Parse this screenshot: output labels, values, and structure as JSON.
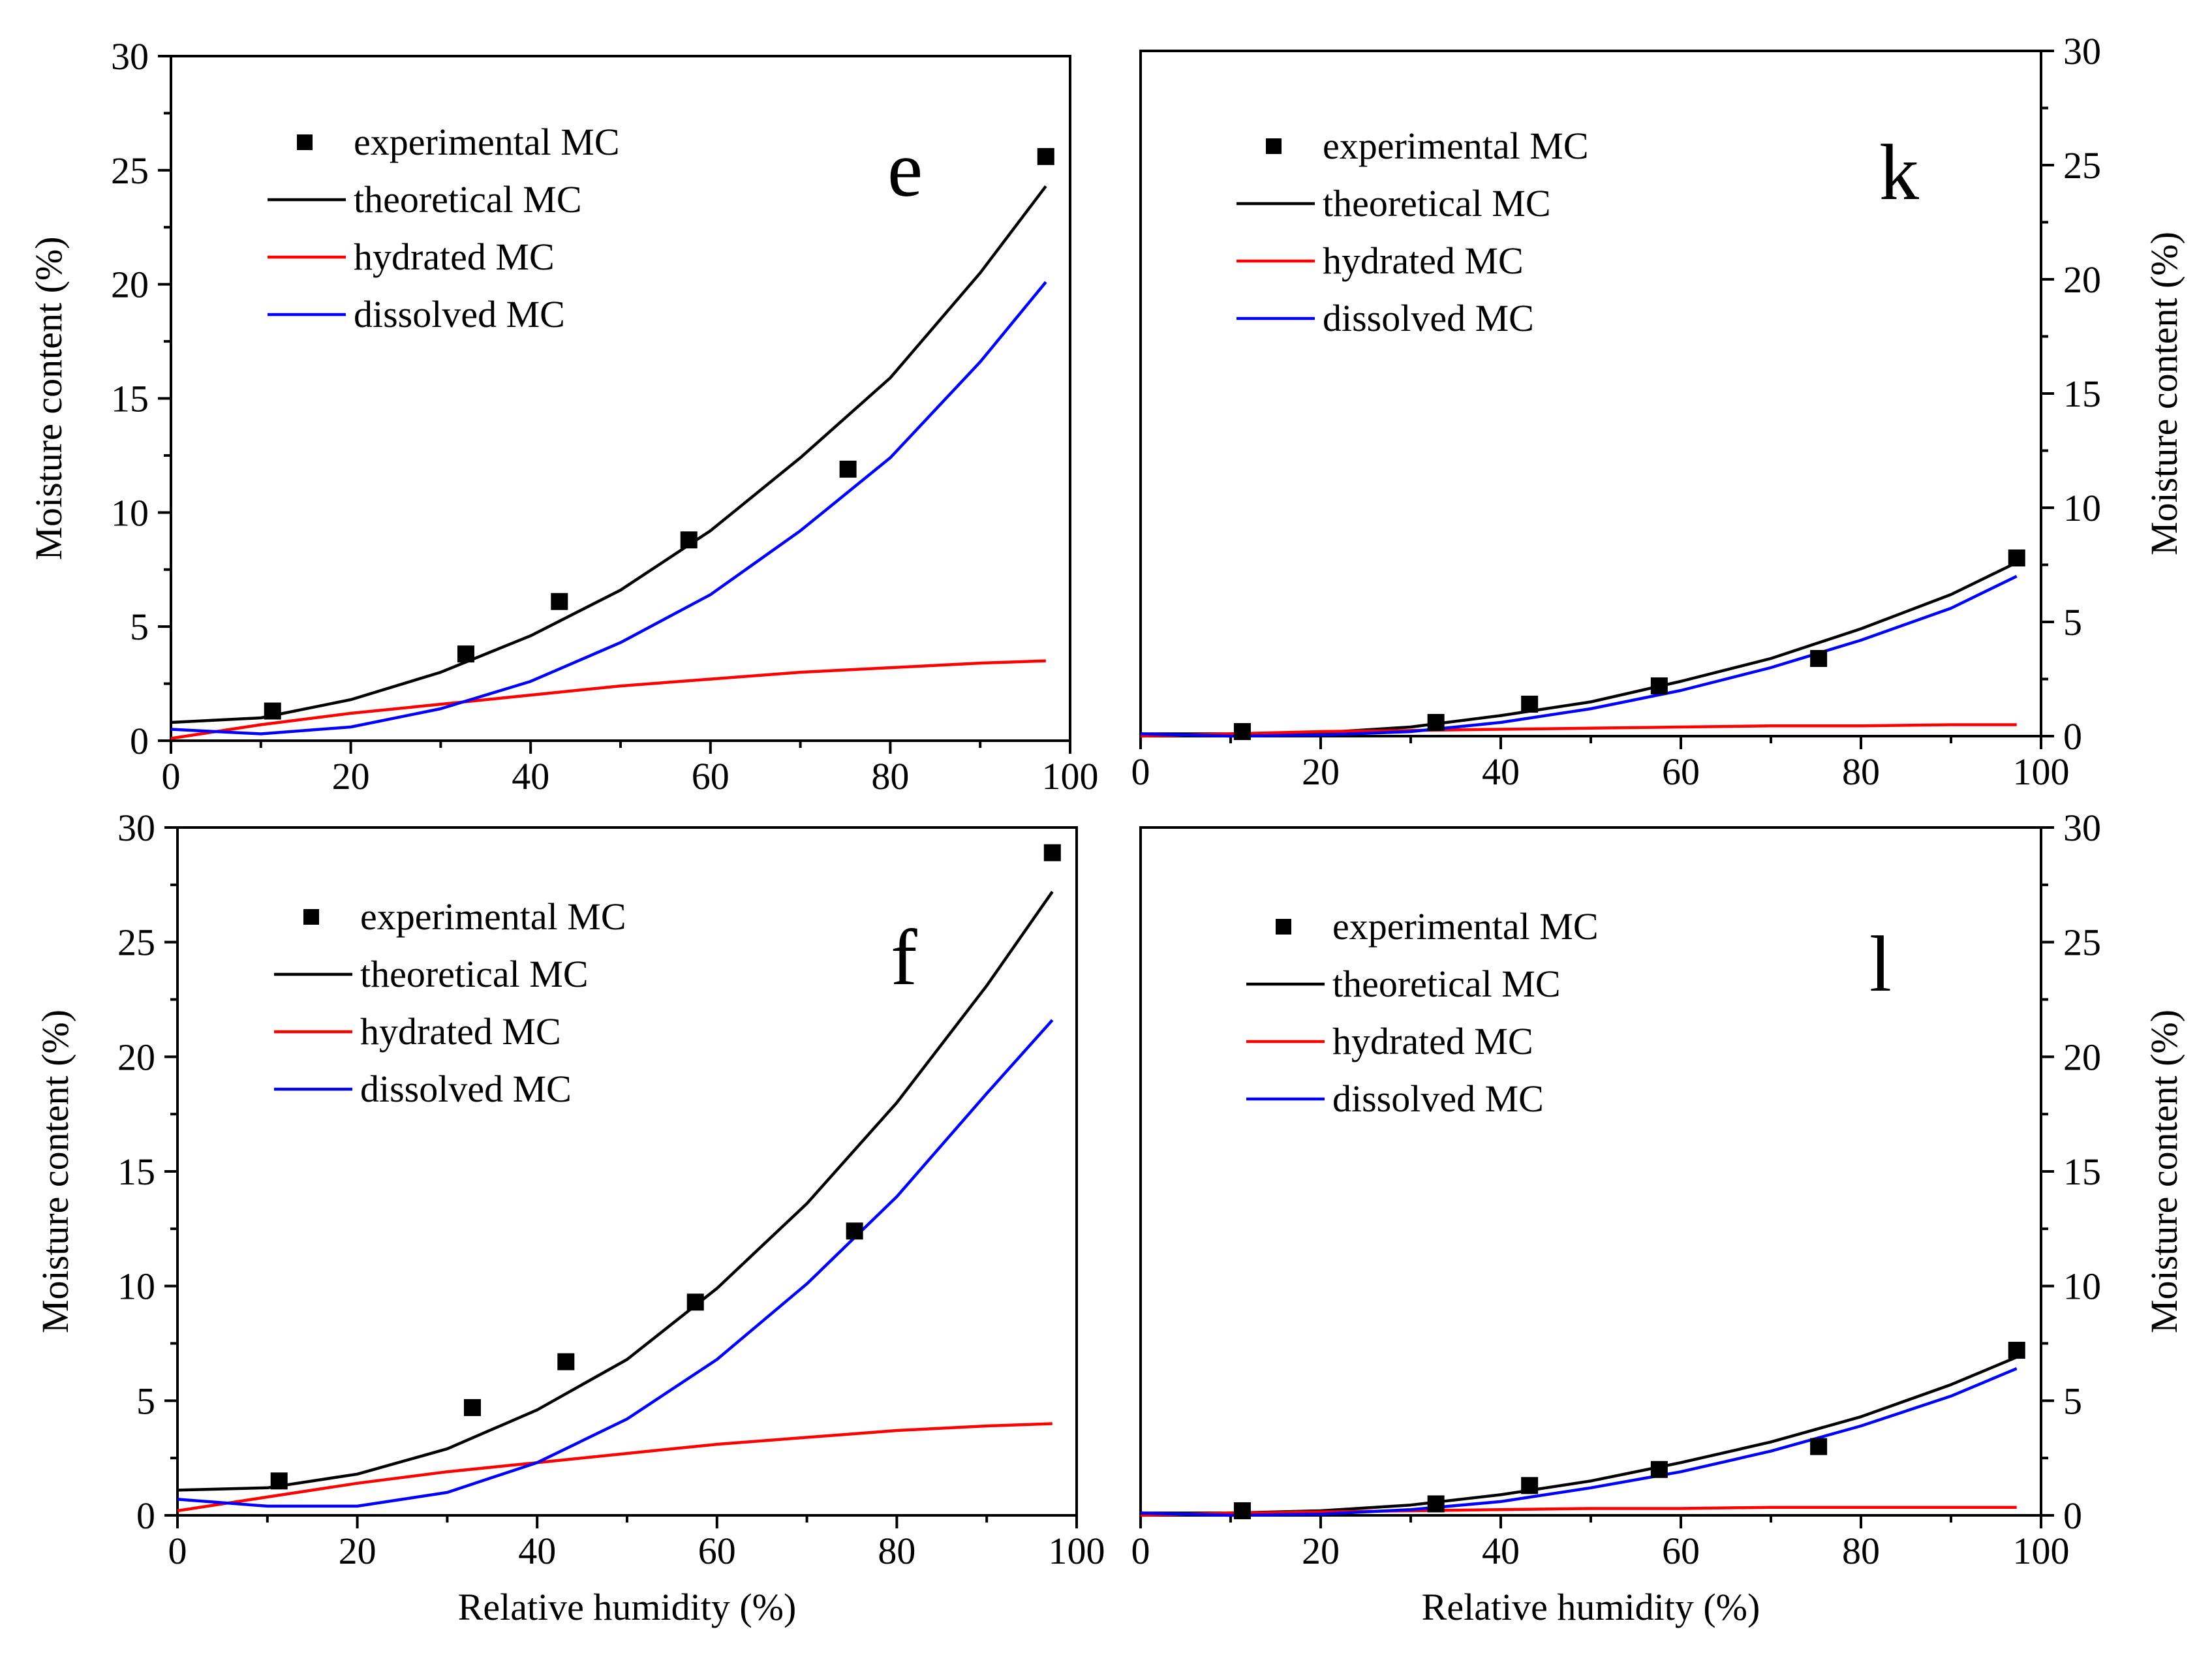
{
  "colors": {
    "experimental": "#000000",
    "theoretical": "#000000",
    "hydrated": "#ff0000",
    "dissolved": "#0000ff",
    "axis": "#000000"
  },
  "chart_data": [
    {
      "type": "scatter+line",
      "panel_letter": "e",
      "xlabel": "",
      "ylabel": "Moisture content (%)",
      "xlim": [
        0,
        100
      ],
      "ylim": [
        0,
        30
      ],
      "x_ticks": [
        "0",
        "20",
        "40",
        "60",
        "80",
        "100"
      ],
      "y_ticks": [
        "0",
        "5",
        "10",
        "15",
        "20",
        "25",
        "30"
      ],
      "legend_position": "top-left",
      "legend": [
        "experimental MC",
        "theoretical MC",
        "hydrated MC",
        "dissolved MC"
      ],
      "experimental": {
        "name": "experimental MC",
        "x": [
          11.3,
          32.8,
          43.2,
          57.6,
          75.3,
          97.3
        ],
        "y": [
          1.3,
          3.8,
          6.1,
          8.8,
          11.9,
          25.6
        ]
      },
      "series": [
        {
          "name": "theoretical MC",
          "x": [
            0,
            10,
            20,
            30,
            40,
            50,
            60,
            70,
            80,
            90,
            97.3
          ],
          "y": [
            0.8,
            1.0,
            1.8,
            3.0,
            4.6,
            6.6,
            9.2,
            12.4,
            15.9,
            20.5,
            24.3
          ]
        },
        {
          "name": "hydrated MC",
          "x": [
            0,
            10,
            20,
            30,
            40,
            50,
            60,
            70,
            80,
            90,
            97.3
          ],
          "y": [
            0.1,
            0.7,
            1.2,
            1.6,
            2.0,
            2.4,
            2.7,
            3.0,
            3.2,
            3.4,
            3.5
          ]
        },
        {
          "name": "dissolved MC",
          "x": [
            0,
            10,
            20,
            30,
            40,
            50,
            60,
            70,
            80,
            90,
            97.3
          ],
          "y": [
            0.5,
            0.3,
            0.6,
            1.4,
            2.6,
            4.3,
            6.4,
            9.2,
            12.4,
            16.6,
            20.1
          ]
        }
      ]
    },
    {
      "type": "scatter+line",
      "panel_letter": "k",
      "xlabel": "",
      "ylabel": "Moisture content (%)",
      "xlim": [
        0,
        100
      ],
      "ylim": [
        0,
        30
      ],
      "x_ticks": [
        "0",
        "20",
        "40",
        "60",
        "80",
        "100"
      ],
      "y_ticks": [
        "0",
        "5",
        "10",
        "15",
        "20",
        "25",
        "30"
      ],
      "legend_position": "top-left",
      "legend": [
        "experimental MC",
        "theoretical MC",
        "hydrated MC",
        "dissolved MC"
      ],
      "experimental": {
        "name": "experimental MC",
        "x": [
          11.3,
          32.8,
          43.2,
          57.6,
          75.3,
          97.3
        ],
        "y": [
          0.2,
          0.6,
          1.4,
          2.2,
          3.4,
          7.8
        ]
      },
      "series": [
        {
          "name": "theoretical MC",
          "x": [
            0,
            10,
            20,
            30,
            40,
            50,
            60,
            70,
            80,
            90,
            97.3
          ],
          "y": [
            0.1,
            0.1,
            0.15,
            0.4,
            0.9,
            1.5,
            2.4,
            3.4,
            4.7,
            6.2,
            7.6
          ]
        },
        {
          "name": "hydrated MC",
          "x": [
            0,
            10,
            20,
            30,
            40,
            50,
            60,
            70,
            80,
            90,
            97.3
          ],
          "y": [
            0.0,
            0.1,
            0.2,
            0.25,
            0.3,
            0.35,
            0.4,
            0.45,
            0.45,
            0.5,
            0.5
          ]
        },
        {
          "name": "dissolved MC",
          "x": [
            0,
            10,
            20,
            30,
            40,
            50,
            60,
            70,
            80,
            90,
            97.3
          ],
          "y": [
            0.1,
            0.0,
            0.05,
            0.2,
            0.6,
            1.2,
            2.0,
            3.0,
            4.2,
            5.6,
            7.0
          ]
        }
      ]
    },
    {
      "type": "scatter+line",
      "panel_letter": "f",
      "xlabel": "Relative humidity (%)",
      "ylabel": "Moisture content (%)",
      "xlim": [
        0,
        100
      ],
      "ylim": [
        0,
        30
      ],
      "x_ticks": [
        "0",
        "20",
        "40",
        "60",
        "80",
        "100"
      ],
      "y_ticks": [
        "0",
        "5",
        "10",
        "15",
        "20",
        "25",
        "30"
      ],
      "legend_position": "top-left",
      "legend": [
        "experimental MC",
        "theoretical MC",
        "hydrated MC",
        "dissolved MC"
      ],
      "experimental": {
        "name": "experimental MC",
        "x": [
          11.3,
          32.8,
          43.2,
          57.6,
          75.3,
          97.3
        ],
        "y": [
          1.5,
          4.7,
          6.7,
          9.3,
          12.4,
          28.9
        ]
      },
      "series": [
        {
          "name": "theoretical MC",
          "x": [
            0,
            10,
            20,
            30,
            40,
            50,
            60,
            70,
            80,
            90,
            97.3
          ],
          "y": [
            1.1,
            1.2,
            1.8,
            2.9,
            4.6,
            6.8,
            9.9,
            13.6,
            18.0,
            23.1,
            27.2
          ]
        },
        {
          "name": "hydrated MC",
          "x": [
            0,
            10,
            20,
            30,
            40,
            50,
            60,
            70,
            80,
            90,
            97.3
          ],
          "y": [
            0.2,
            0.8,
            1.4,
            1.9,
            2.3,
            2.7,
            3.1,
            3.4,
            3.7,
            3.9,
            4.0
          ]
        },
        {
          "name": "dissolved MC",
          "x": [
            0,
            10,
            20,
            30,
            40,
            50,
            60,
            70,
            80,
            90,
            97.3
          ],
          "y": [
            0.7,
            0.4,
            0.4,
            1.0,
            2.3,
            4.2,
            6.8,
            10.1,
            13.9,
            18.4,
            21.6
          ]
        }
      ]
    },
    {
      "type": "scatter+line",
      "panel_letter": "l",
      "xlabel": "Relative humidity (%)",
      "ylabel": "Moisture content (%)",
      "xlim": [
        0,
        100
      ],
      "ylim": [
        0,
        30
      ],
      "x_ticks": [
        "0",
        "20",
        "40",
        "60",
        "80",
        "100"
      ],
      "y_ticks": [
        "0",
        "5",
        "10",
        "15",
        "20",
        "25",
        "30"
      ],
      "legend_position": "top-left",
      "legend": [
        "experimental MC",
        "theoretical MC",
        "hydrated MC",
        "dissolved MC"
      ],
      "experimental": {
        "name": "experimental MC",
        "x": [
          11.3,
          32.8,
          43.2,
          57.6,
          75.3,
          97.3
        ],
        "y": [
          0.2,
          0.5,
          1.3,
          2.0,
          3.0,
          7.2
        ]
      },
      "series": [
        {
          "name": "theoretical MC",
          "x": [
            0,
            10,
            20,
            30,
            40,
            50,
            60,
            70,
            80,
            90,
            97.3
          ],
          "y": [
            0.1,
            0.1,
            0.2,
            0.45,
            0.9,
            1.5,
            2.3,
            3.2,
            4.3,
            5.7,
            6.9
          ]
        },
        {
          "name": "hydrated MC",
          "x": [
            0,
            10,
            20,
            30,
            40,
            50,
            60,
            70,
            80,
            90,
            97.3
          ],
          "y": [
            0.0,
            0.1,
            0.15,
            0.2,
            0.25,
            0.3,
            0.3,
            0.35,
            0.35,
            0.35,
            0.35
          ]
        },
        {
          "name": "dissolved MC",
          "x": [
            0,
            10,
            20,
            30,
            40,
            50,
            60,
            70,
            80,
            90,
            97.3
          ],
          "y": [
            0.1,
            0.0,
            0.05,
            0.25,
            0.6,
            1.2,
            1.9,
            2.8,
            3.9,
            5.2,
            6.4
          ]
        }
      ]
    }
  ]
}
